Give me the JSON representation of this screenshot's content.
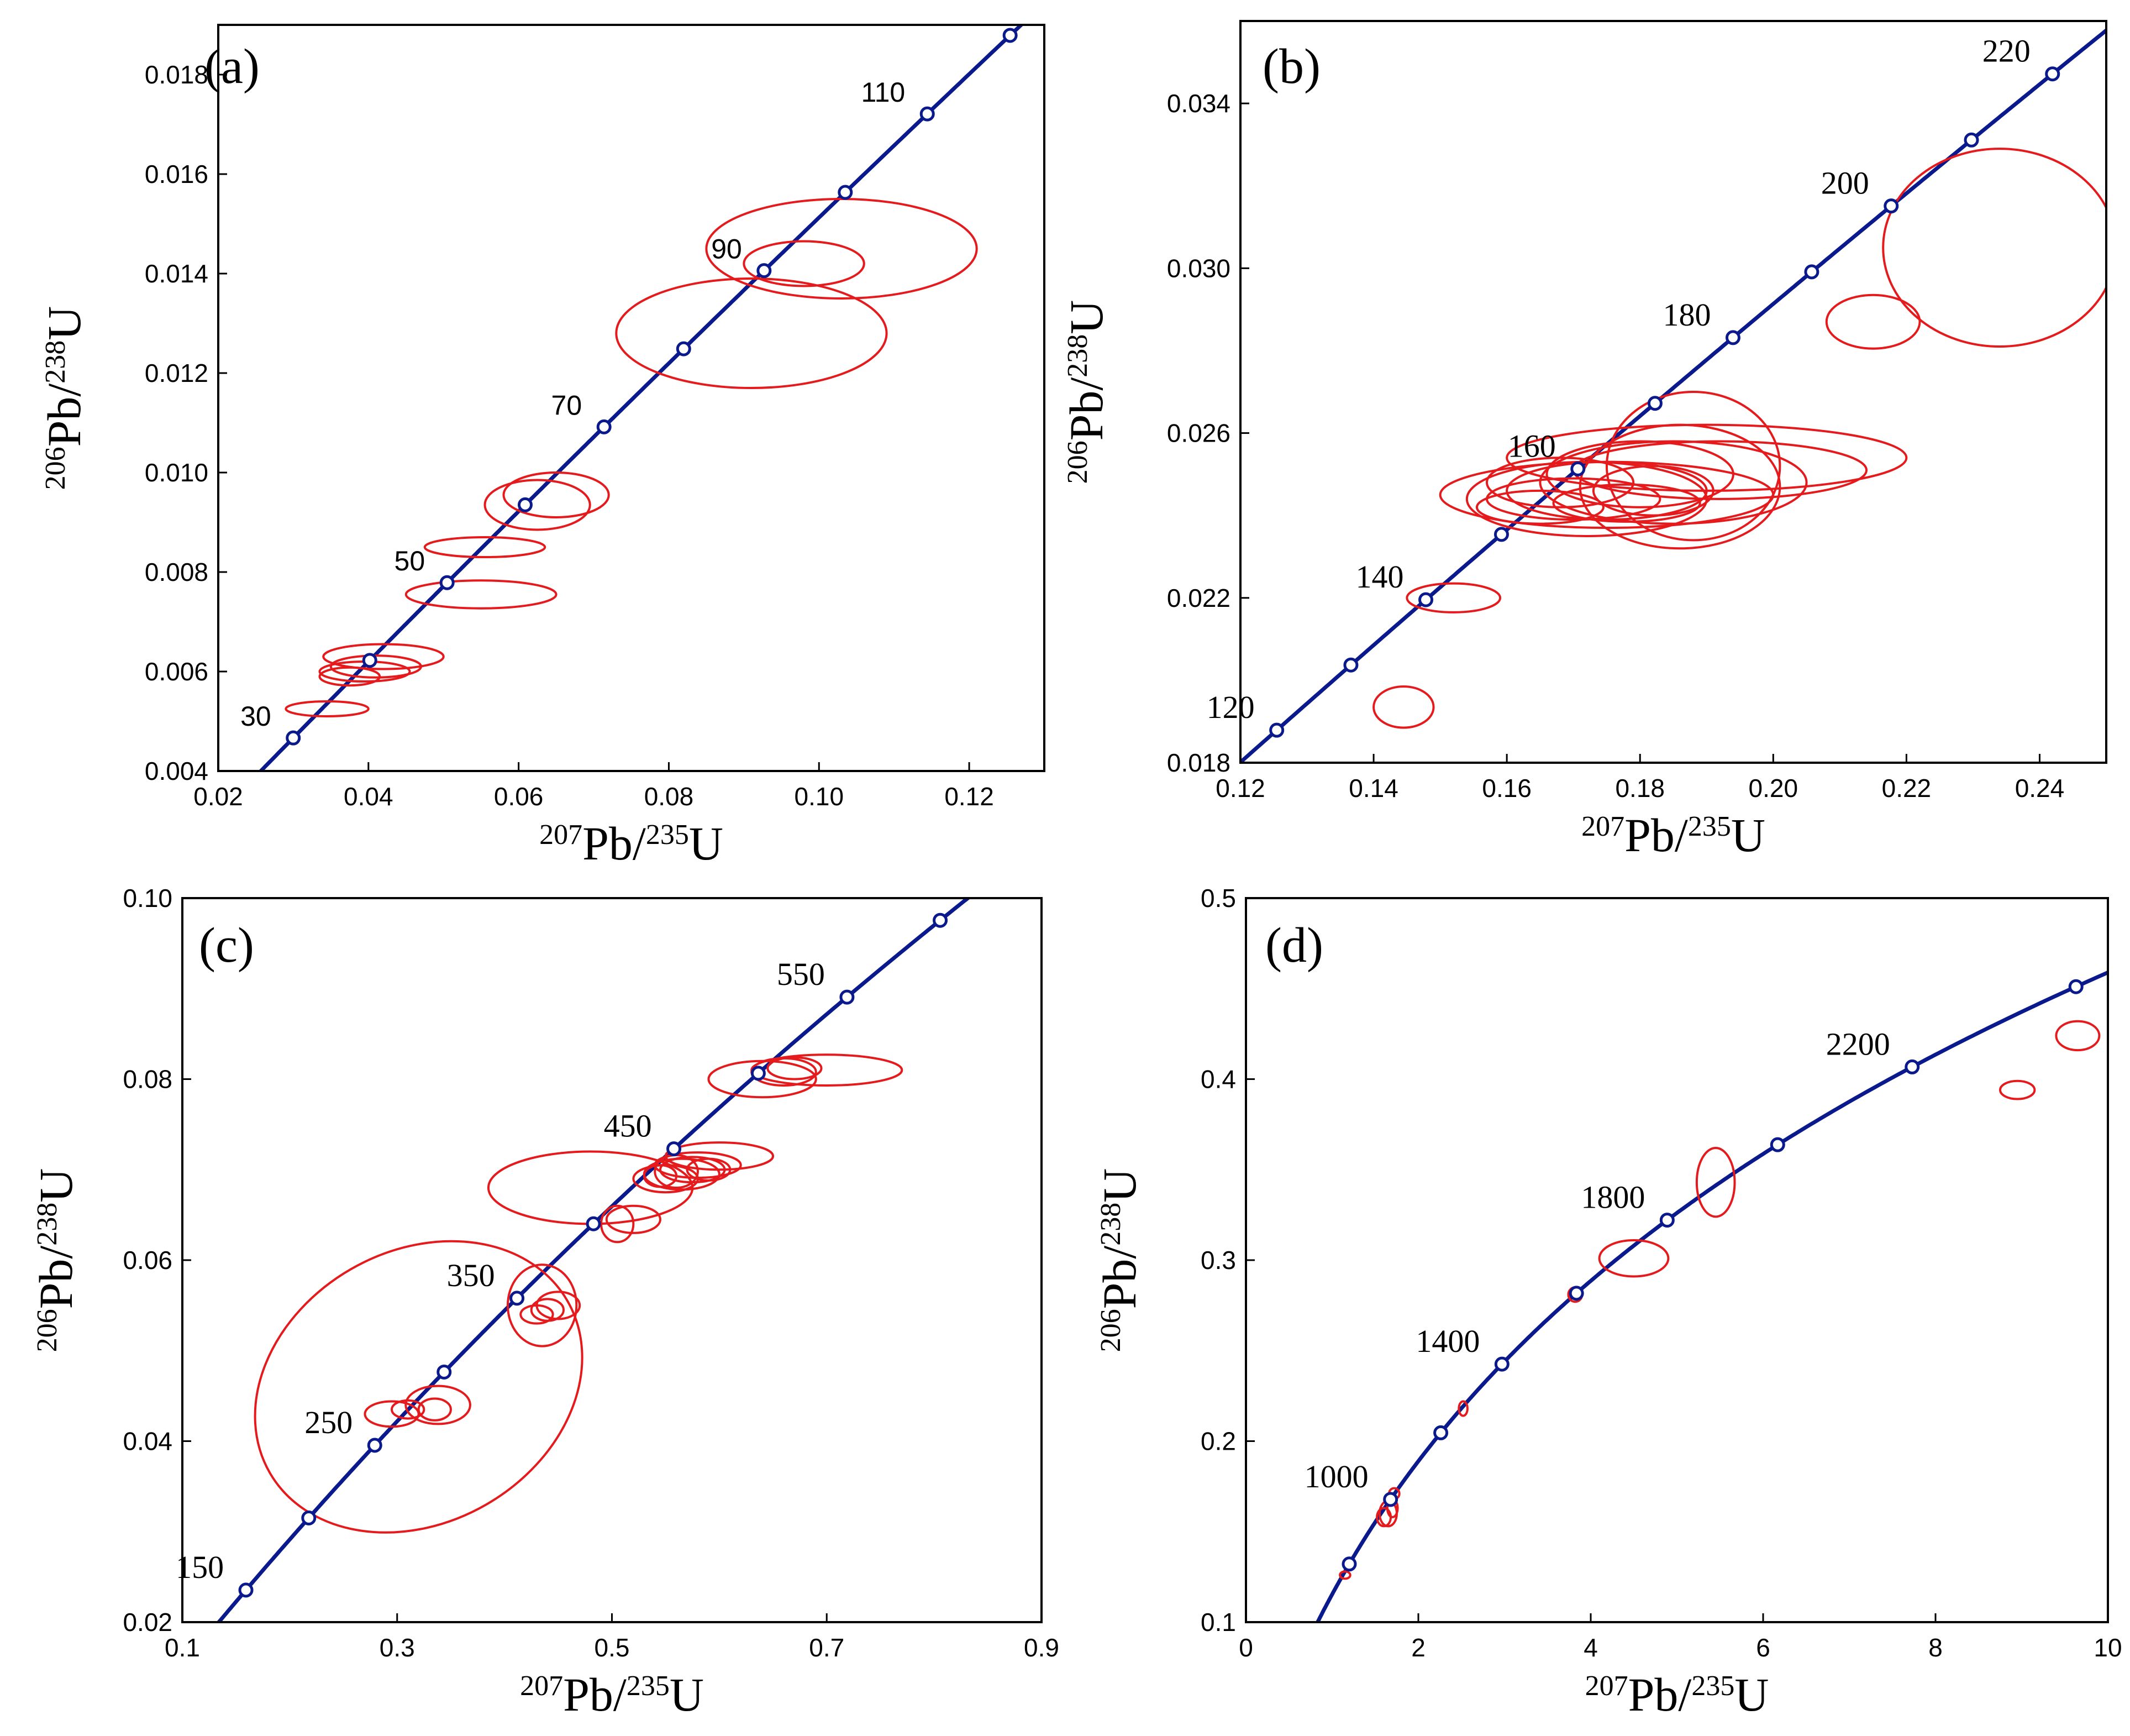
{
  "colors": {
    "concordia": "#0a1a8c",
    "ellipse": "#e41a1c",
    "axis": "#000000",
    "marker_fill": "#ffffff"
  },
  "chart_data": [
    {
      "id": "a",
      "type": "scatter",
      "title": "(a)",
      "xlabel": {
        "pre1": "207",
        "base1": "Pb/",
        "pre2": "235",
        "base2": "U"
      },
      "ylabel": {
        "pre1": "206",
        "base1": "Pb/",
        "pre2": "238",
        "base2": "U"
      },
      "xlim": [
        0.02,
        0.13
      ],
      "ylim": [
        0.004,
        0.019
      ],
      "xticks": [
        0.02,
        0.04,
        0.06,
        0.08,
        0.1,
        0.12
      ],
      "xtick_labels": [
        "0.02",
        "0.04",
        "0.06",
        "0.08",
        "0.10",
        "0.12"
      ],
      "yticks": [
        0.004,
        0.006,
        0.008,
        0.01,
        0.012,
        0.014,
        0.016,
        0.018
      ],
      "ytick_labels": [
        "0.004",
        "0.006",
        "0.008",
        "0.010",
        "0.012",
        "0.014",
        "0.016",
        "0.018"
      ],
      "concordia": {
        "ages": [
          30,
          40,
          50,
          60,
          70,
          80,
          90,
          100,
          110,
          120
        ],
        "labeled": [
          "30",
          "50",
          "70",
          "90",
          "110"
        ],
        "age_range": [
          20,
          130
        ]
      },
      "ellipses": [
        {
          "cx": 0.0345,
          "cy": 0.00525,
          "rx": 0.0055,
          "ry": 0.00015,
          "rot": 0
        },
        {
          "cx": 0.0375,
          "cy": 0.0059,
          "rx": 0.004,
          "ry": 0.00018,
          "rot": 0
        },
        {
          "cx": 0.0395,
          "cy": 0.006,
          "rx": 0.006,
          "ry": 0.0002,
          "rot": 0
        },
        {
          "cx": 0.041,
          "cy": 0.0061,
          "rx": 0.006,
          "ry": 0.00022,
          "rot": 0
        },
        {
          "cx": 0.042,
          "cy": 0.0063,
          "rx": 0.008,
          "ry": 0.00025,
          "rot": 0
        },
        {
          "cx": 0.055,
          "cy": 0.00755,
          "rx": 0.01,
          "ry": 0.00028,
          "rot": 0
        },
        {
          "cx": 0.0555,
          "cy": 0.0085,
          "rx": 0.008,
          "ry": 0.0002,
          "rot": 0
        },
        {
          "cx": 0.0625,
          "cy": 0.00935,
          "rx": 0.007,
          "ry": 0.0005,
          "rot": 0
        },
        {
          "cx": 0.065,
          "cy": 0.00955,
          "rx": 0.007,
          "ry": 0.00045,
          "rot": 0
        },
        {
          "cx": 0.091,
          "cy": 0.0128,
          "rx": 0.018,
          "ry": 0.0011,
          "rot": 0
        },
        {
          "cx": 0.098,
          "cy": 0.0142,
          "rx": 0.008,
          "ry": 0.00045,
          "rot": 0
        },
        {
          "cx": 0.103,
          "cy": 0.0145,
          "rx": 0.018,
          "ry": 0.001,
          "rot": 0
        }
      ]
    },
    {
      "id": "b",
      "type": "scatter",
      "title": "(b)",
      "xlabel": {
        "pre1": "207",
        "base1": "Pb/",
        "pre2": "235",
        "base2": "U"
      },
      "ylabel": {
        "pre1": "206",
        "base1": "Pb/",
        "pre2": "238",
        "base2": "U"
      },
      "xlim": [
        0.12,
        0.25
      ],
      "ylim": [
        0.018,
        0.036
      ],
      "xticks": [
        0.12,
        0.14,
        0.16,
        0.18,
        0.2,
        0.22,
        0.24
      ],
      "xtick_labels": [
        "0.12",
        "0.14",
        "0.16",
        "0.18",
        "0.20",
        "0.22",
        "0.24"
      ],
      "yticks": [
        0.018,
        0.022,
        0.026,
        0.03,
        0.034
      ],
      "ytick_labels": [
        "0.018",
        "0.022",
        "0.026",
        "0.030",
        "0.034"
      ],
      "concordia": {
        "ages": [
          120,
          130,
          140,
          150,
          160,
          170,
          180,
          190,
          200,
          210,
          220
        ],
        "labeled": [
          "120",
          "140",
          "160",
          "180",
          "200",
          "220"
        ],
        "age_range": [
          110,
          232
        ]
      },
      "ellipses": [
        {
          "cx": 0.1445,
          "cy": 0.01935,
          "rx": 0.0045,
          "ry": 0.0005,
          "rot": 0
        },
        {
          "cx": 0.152,
          "cy": 0.022,
          "rx": 0.007,
          "ry": 0.00035,
          "rot": 0
        },
        {
          "cx": 0.172,
          "cy": 0.0244,
          "rx": 0.018,
          "ry": 0.0009,
          "rot": 0
        },
        {
          "cx": 0.165,
          "cy": 0.0242,
          "rx": 0.0095,
          "ry": 0.0004,
          "rot": 0
        },
        {
          "cx": 0.168,
          "cy": 0.0248,
          "rx": 0.011,
          "ry": 0.0006,
          "rot": 0
        },
        {
          "cx": 0.17,
          "cy": 0.0244,
          "rx": 0.013,
          "ry": 0.0005,
          "rot": 0
        },
        {
          "cx": 0.175,
          "cy": 0.0246,
          "rx": 0.015,
          "ry": 0.0007,
          "rot": 0
        },
        {
          "cx": 0.178,
          "cy": 0.0243,
          "rx": 0.011,
          "ry": 0.00045,
          "rot": 0
        },
        {
          "cx": 0.18,
          "cy": 0.025,
          "rx": 0.014,
          "ry": 0.0008,
          "rot": 0
        },
        {
          "cx": 0.185,
          "cy": 0.0248,
          "rx": 0.02,
          "ry": 0.001,
          "rot": 0
        },
        {
          "cx": 0.175,
          "cy": 0.0245,
          "rx": 0.025,
          "ry": 0.0008,
          "rot": 0
        },
        {
          "cx": 0.19,
          "cy": 0.0254,
          "rx": 0.03,
          "ry": 0.0008,
          "rot": 0
        },
        {
          "cx": 0.192,
          "cy": 0.0251,
          "rx": 0.022,
          "ry": 0.0007,
          "rot": 0
        },
        {
          "cx": 0.186,
          "cy": 0.0247,
          "rx": 0.015,
          "ry": 0.0015,
          "rot": 0
        },
        {
          "cx": 0.188,
          "cy": 0.0252,
          "rx": 0.013,
          "ry": 0.0018,
          "rot": 0
        },
        {
          "cx": 0.182,
          "cy": 0.0246,
          "rx": 0.009,
          "ry": 0.0006,
          "rot": 0
        },
        {
          "cx": 0.234,
          "cy": 0.0305,
          "rx": 0.0175,
          "ry": 0.0024,
          "rot": 0
        },
        {
          "cx": 0.215,
          "cy": 0.0287,
          "rx": 0.007,
          "ry": 0.00065,
          "rot": 0
        }
      ]
    },
    {
      "id": "c",
      "type": "scatter",
      "title": "(c)",
      "xlabel": {
        "pre1": "207",
        "base1": "Pb/",
        "pre2": "235",
        "base2": "U"
      },
      "ylabel": {
        "pre1": "206",
        "base1": "Pb/",
        "pre2": "238",
        "base2": "U"
      },
      "xlim": [
        0.1,
        0.9
      ],
      "ylim": [
        0.02,
        0.1
      ],
      "xticks": [
        0.1,
        0.3,
        0.5,
        0.7,
        0.9
      ],
      "xtick_labels": [
        "0.1",
        "0.3",
        "0.5",
        "0.7",
        "0.9"
      ],
      "yticks": [
        0.02,
        0.04,
        0.06,
        0.08,
        0.1
      ],
      "ytick_labels": [
        "0.02",
        "0.04",
        "0.06",
        "0.08",
        "0.10"
      ],
      "concordia": {
        "ages": [
          150,
          200,
          250,
          300,
          350,
          400,
          450,
          500,
          550,
          600
        ],
        "labeled": [
          "150",
          "250",
          "350",
          "450",
          "550"
        ],
        "age_range": [
          125,
          630
        ]
      },
      "ellipses": [
        {
          "cx": 0.32,
          "cy": 0.046,
          "rx": 0.16,
          "ry": 0.015,
          "rot": -30
        },
        {
          "cx": 0.295,
          "cy": 0.043,
          "rx": 0.025,
          "ry": 0.0014,
          "rot": 0
        },
        {
          "cx": 0.31,
          "cy": 0.0435,
          "rx": 0.015,
          "ry": 0.001,
          "rot": 0
        },
        {
          "cx": 0.335,
          "cy": 0.0435,
          "rx": 0.015,
          "ry": 0.0012,
          "rot": 0
        },
        {
          "cx": 0.338,
          "cy": 0.044,
          "rx": 0.03,
          "ry": 0.0021,
          "rot": 0
        },
        {
          "cx": 0.435,
          "cy": 0.055,
          "rx": 0.032,
          "ry": 0.0045,
          "rot": 0
        },
        {
          "cx": 0.43,
          "cy": 0.054,
          "rx": 0.015,
          "ry": 0.001,
          "rot": 0
        },
        {
          "cx": 0.44,
          "cy": 0.0545,
          "rx": 0.015,
          "ry": 0.0012,
          "rot": 0
        },
        {
          "cx": 0.45,
          "cy": 0.055,
          "rx": 0.02,
          "ry": 0.0015,
          "rot": 0
        },
        {
          "cx": 0.48,
          "cy": 0.068,
          "rx": 0.095,
          "ry": 0.004,
          "rot": 0
        },
        {
          "cx": 0.52,
          "cy": 0.0645,
          "rx": 0.025,
          "ry": 0.0015,
          "rot": 0
        },
        {
          "cx": 0.505,
          "cy": 0.064,
          "rx": 0.015,
          "ry": 0.002,
          "rot": 0
        },
        {
          "cx": 0.6,
          "cy": 0.0715,
          "rx": 0.05,
          "ry": 0.0015,
          "rot": 0
        },
        {
          "cx": 0.55,
          "cy": 0.069,
          "rx": 0.03,
          "ry": 0.0015,
          "rot": 0
        },
        {
          "cx": 0.565,
          "cy": 0.0695,
          "rx": 0.035,
          "ry": 0.0017,
          "rot": 0
        },
        {
          "cx": 0.575,
          "cy": 0.07,
          "rx": 0.03,
          "ry": 0.0014,
          "rot": 0
        },
        {
          "cx": 0.58,
          "cy": 0.0705,
          "rx": 0.04,
          "ry": 0.0014,
          "rot": 0
        },
        {
          "cx": 0.56,
          "cy": 0.0698,
          "rx": 0.02,
          "ry": 0.0018,
          "rot": 0
        },
        {
          "cx": 0.59,
          "cy": 0.07,
          "rx": 0.02,
          "ry": 0.0012,
          "rot": 0
        },
        {
          "cx": 0.545,
          "cy": 0.0693,
          "rx": 0.015,
          "ry": 0.0012,
          "rot": 0
        },
        {
          "cx": 0.64,
          "cy": 0.08,
          "rx": 0.05,
          "ry": 0.002,
          "rot": 0
        },
        {
          "cx": 0.66,
          "cy": 0.0808,
          "rx": 0.03,
          "ry": 0.0015,
          "rot": 0
        },
        {
          "cx": 0.67,
          "cy": 0.0812,
          "rx": 0.025,
          "ry": 0.0012,
          "rot": 0
        },
        {
          "cx": 0.7,
          "cy": 0.081,
          "rx": 0.07,
          "ry": 0.0017,
          "rot": 0
        }
      ]
    },
    {
      "id": "d",
      "type": "scatter",
      "title": "(d)",
      "xlabel": {
        "pre1": "207",
        "base1": "Pb/",
        "pre2": "235",
        "base2": "U"
      },
      "ylabel": {
        "pre1": "206",
        "base1": "Pb/",
        "pre2": "238",
        "base2": "U"
      },
      "xlim": [
        0,
        10
      ],
      "ylim": [
        0.1,
        0.5
      ],
      "xticks": [
        0,
        2,
        4,
        6,
        8,
        10
      ],
      "xtick_labels": [
        "0",
        "2",
        "4",
        "6",
        "8",
        "10"
      ],
      "yticks": [
        0.1,
        0.2,
        0.3,
        0.4,
        0.5
      ],
      "ytick_labels": [
        "0.1",
        "0.2",
        "0.3",
        "0.4",
        "0.5"
      ],
      "concordia": {
        "ages": [
          800,
          1000,
          1200,
          1400,
          1600,
          1800,
          2000,
          2200,
          2400
        ],
        "labeled": [
          "1000",
          "1400",
          "1800",
          "2200"
        ],
        "age_range": [
          560,
          2480
        ]
      },
      "ellipses": [
        {
          "cx": 1.15,
          "cy": 0.126,
          "rx": 0.06,
          "ry": 0.002,
          "rot": 0
        },
        {
          "cx": 1.6,
          "cy": 0.158,
          "rx": 0.08,
          "ry": 0.005,
          "rot": 0
        },
        {
          "cx": 1.65,
          "cy": 0.16,
          "rx": 0.1,
          "ry": 0.007,
          "rot": 0
        },
        {
          "cx": 1.7,
          "cy": 0.163,
          "rx": 0.06,
          "ry": 0.005,
          "rot": 0
        },
        {
          "cx": 1.72,
          "cy": 0.171,
          "rx": 0.06,
          "ry": 0.003,
          "rot": 0
        },
        {
          "cx": 2.52,
          "cy": 0.218,
          "rx": 0.05,
          "ry": 0.004,
          "rot": 0
        },
        {
          "cx": 3.82,
          "cy": 0.281,
          "rx": 0.08,
          "ry": 0.004,
          "rot": 0
        },
        {
          "cx": 4.5,
          "cy": 0.301,
          "rx": 0.4,
          "ry": 0.01,
          "rot": 0
        },
        {
          "cx": 5.45,
          "cy": 0.343,
          "rx": 0.22,
          "ry": 0.019,
          "rot": 0
        },
        {
          "cx": 8.95,
          "cy": 0.394,
          "rx": 0.2,
          "ry": 0.005,
          "rot": 0
        },
        {
          "cx": 9.65,
          "cy": 0.424,
          "rx": 0.25,
          "ry": 0.008,
          "rot": 0
        }
      ]
    }
  ]
}
